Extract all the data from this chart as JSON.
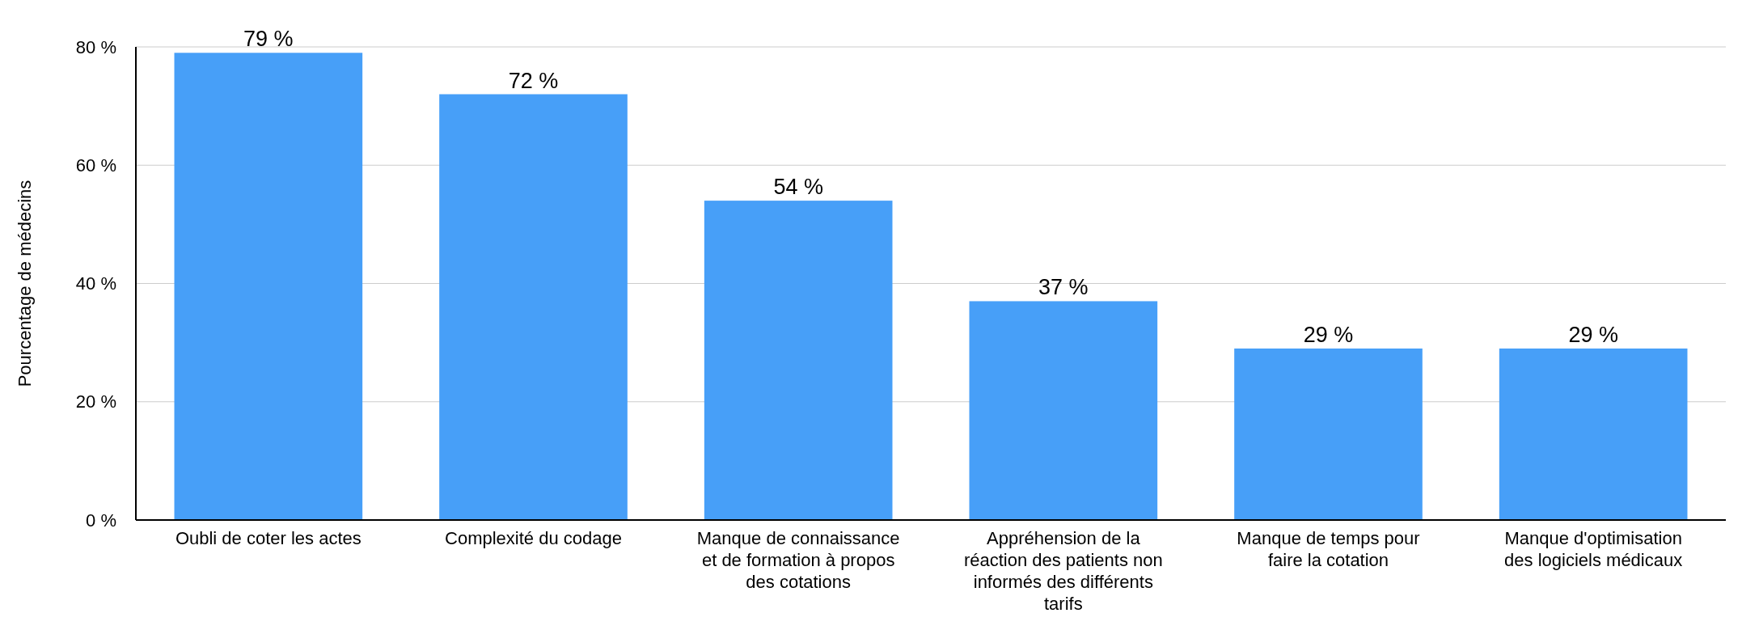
{
  "chart_data": {
    "type": "bar",
    "ylabel": "Pourcentage de médecins",
    "categories": [
      "Oubli de coter les actes",
      "Complexité du codage",
      "Manque de connaissance et de formation à propos des cotations",
      "Appréhension de la réaction des patients non informés des différents tarifs",
      "Manque de temps pour faire la cotation",
      "Manque d'optimisation des logiciels médicaux"
    ],
    "values": [
      79,
      72,
      54,
      37,
      29,
      29
    ],
    "value_labels": [
      "79 %",
      "72 %",
      "54 %",
      "37 %",
      "29 %",
      "29 %"
    ],
    "color": "#479ff8",
    "ylim": [
      0,
      80
    ],
    "yticks": [
      {
        "value": 0,
        "label": "0 %"
      },
      {
        "value": 20,
        "label": "20 %"
      },
      {
        "value": 40,
        "label": "40 %"
      },
      {
        "value": 60,
        "label": "60 %"
      },
      {
        "value": 80,
        "label": "80 %"
      }
    ],
    "grid": "y"
  }
}
